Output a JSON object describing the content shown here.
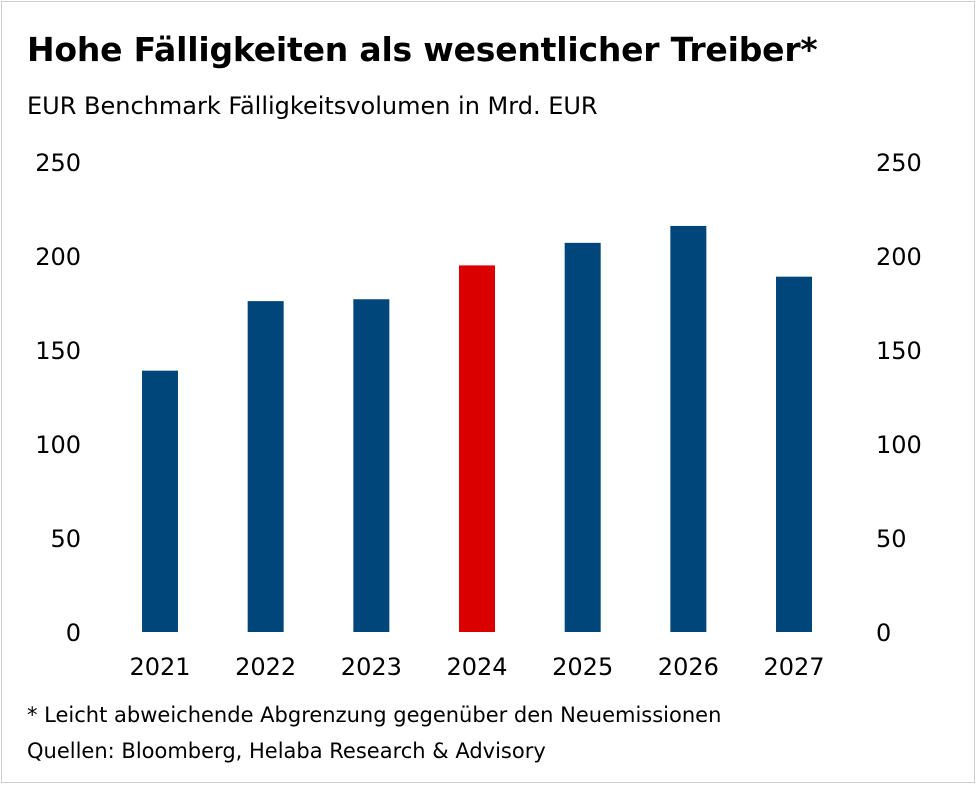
{
  "chart_data": {
    "type": "bar",
    "title": "Hohe Fälligkeiten als wesentlicher Treiber*",
    "subtitle": "EUR Benchmark Fälligkeitsvolumen in Mrd. EUR",
    "categories": [
      "2021",
      "2022",
      "2023",
      "2024",
      "2025",
      "2026",
      "2027"
    ],
    "values": [
      139,
      176,
      177,
      195,
      207,
      216,
      189
    ],
    "highlight_category": "2024",
    "colors": {
      "default": "#00467a",
      "highlight": "#da0000"
    },
    "ylim": [
      0,
      250
    ],
    "yticks": [
      0,
      50,
      100,
      150,
      200,
      250
    ],
    "left_axis_labels": [
      "0",
      "50",
      "100",
      "150",
      "200",
      "250"
    ],
    "right_axis_labels": [
      "0",
      "50",
      "100",
      "150",
      "200",
      "250"
    ],
    "xlabel": "",
    "ylabel": "",
    "grid": false,
    "footnote": "* Leicht abweichende Abgrenzung gegenüber den Neuemissionen",
    "sources": "Quellen: Bloomberg, Helaba Research & Advisory"
  }
}
